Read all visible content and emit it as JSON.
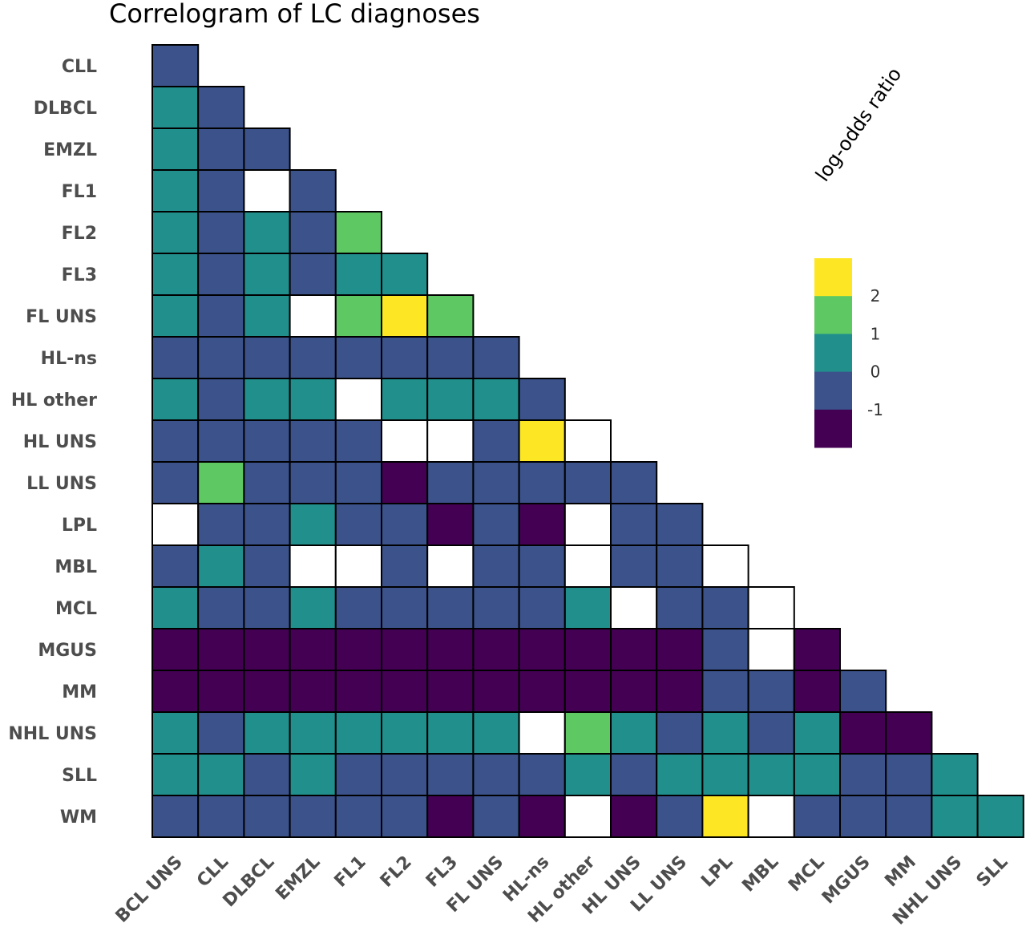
{
  "chart_data": {
    "type": "heatmap",
    "title": "Correlogram of LC diagnoses",
    "row_labels": [
      "CLL",
      "DLBCL",
      "EMZL",
      "FL1",
      "FL2",
      "FL3",
      "FL UNS",
      "HL-ns",
      "HL other",
      "HL UNS",
      "LL UNS",
      "LPL",
      "MBL",
      "MCL",
      "MGUS",
      "MM",
      "NHL UNS",
      "SLL",
      "WM"
    ],
    "col_labels": [
      "BCL UNS",
      "CLL",
      "DLBCL",
      "EMZL",
      "FL1",
      "FL2",
      "FL3",
      "FL UNS",
      "HL-ns",
      "HL other",
      "HL UNS",
      "LL UNS",
      "LPL",
      "MBL",
      "MCL",
      "MGUS",
      "MM",
      "NHL UNS",
      "SLL"
    ],
    "value_bins": {
      "A": "< -1",
      "B": "-1 to 0",
      "C": "0 to 1",
      "D": "1 to 2",
      "E": "> 2",
      "N": "missing"
    },
    "cells": [
      "B",
      "CB",
      "CBB",
      "CBNB",
      "CBCBD",
      "CBCBCC",
      "CBCNDED",
      "BBBBBBBB",
      "CBCCNCCCB",
      "BBBBBNNBEN",
      "BDBBBABBBBB",
      "NBBCBBABANBB",
      "BCBNNBNBBNBBN",
      "CBBCBBBBBCNBBN",
      "AAAAAAAAAAAABNA",
      "AAAAAAAAAAAABBAB",
      "CBCCCCCCNDCBCBCAA",
      "CCBCBBBBBCBCCCCBBC",
      "BBBBBBABANABENBBBCC"
    ],
    "colors": {
      "A": "#440154",
      "B": "#3b528b",
      "C": "#21908d",
      "D": "#5ec962",
      "E": "#fde725",
      "N": "#ffffff"
    },
    "legend": {
      "title": "log-odds ratio",
      "ticks": [
        "2",
        "1",
        "0",
        "-1"
      ],
      "placement": "right"
    }
  }
}
